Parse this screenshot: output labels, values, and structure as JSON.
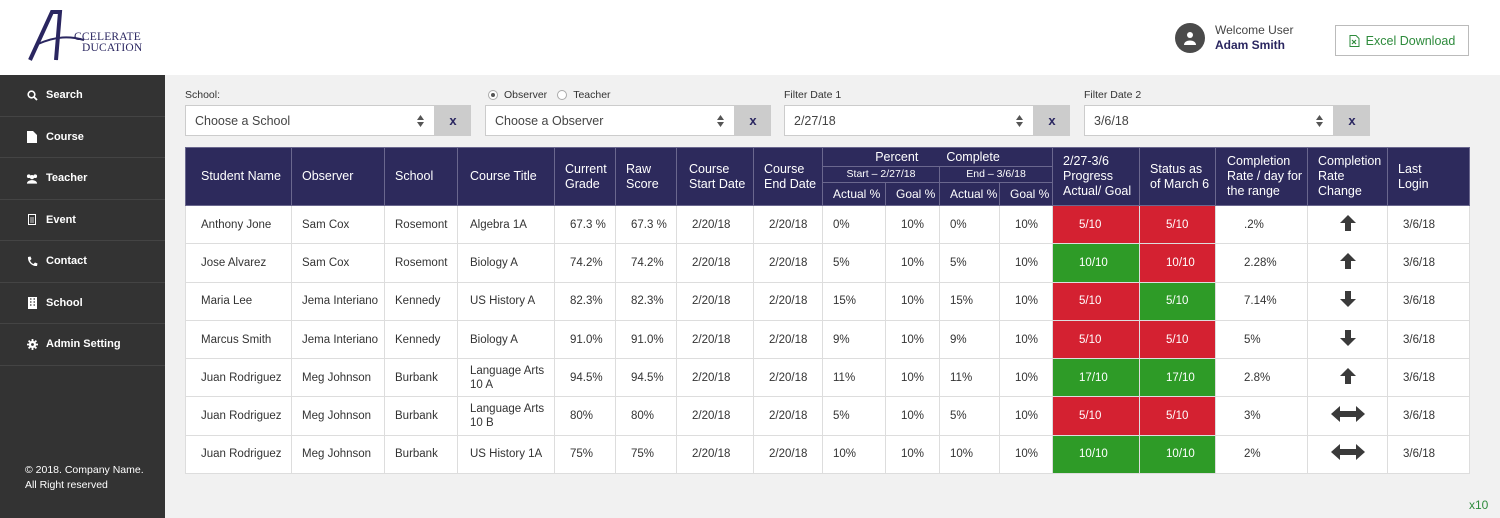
{
  "brand": {
    "line1": "CCELERATE",
    "line2": "DUCATION"
  },
  "header": {
    "welcome": "Welcome User",
    "user_name": "Adam Smith",
    "excel_label": "Excel Download"
  },
  "sidebar": {
    "items": [
      {
        "label": "Search",
        "icon": "search-icon"
      },
      {
        "label": "Course",
        "icon": "document-icon"
      },
      {
        "label": "Teacher",
        "icon": "users-icon"
      },
      {
        "label": "Event",
        "icon": "calendar-icon"
      },
      {
        "label": "Contact",
        "icon": "phone-icon"
      },
      {
        "label": "School",
        "icon": "building-icon"
      },
      {
        "label": "Admin Setting",
        "icon": "gear-icon"
      }
    ],
    "footer_line1": "© 2018. Company Name.",
    "footer_line2": "All Right reserved"
  },
  "filters": {
    "school_label": "School:",
    "school_value": "Choose a School",
    "radio_observer": "Observer",
    "radio_teacher": "Teacher",
    "radio_selected": "Observer",
    "observer_value": "Choose a Observer",
    "date1_label": "Filter Date 1",
    "date1_value": "2/27/18",
    "date2_label": "Filter Date 2",
    "date2_value": "3/6/18",
    "clear_label": "x"
  },
  "table": {
    "headers": {
      "student": "Student Name",
      "observer": "Observer",
      "school": "School",
      "course": "Course Title",
      "current_grade_1": "Current",
      "current_grade_2": "Grade",
      "raw_score_1": "Raw",
      "raw_score_2": "Score",
      "start_1": "Course",
      "start_2": "Start Date",
      "end_1": "Course",
      "end_2": "End Date",
      "percent": "Percent",
      "complete": "Complete",
      "start_range": "Start – 2/27/18",
      "end_range": "End – 3/6/18",
      "actual": "Actual %",
      "goal": "Goal %",
      "progress_1": "2/27-3/6",
      "progress_2": "Progress",
      "progress_3": "Actual/ Goal",
      "status_1": "Status as",
      "status_2": "of March 6",
      "rate_1": "Completion",
      "rate_2": "Rate / day for",
      "rate_3": "the range",
      "change_1": "Completion",
      "change_2": "Rate",
      "change_3": "Change",
      "login_1": "Last",
      "login_2": "Login"
    },
    "rows": [
      {
        "student": "Anthony Jone",
        "observer": "Sam Cox",
        "school": "Rosemont",
        "course": "Algebra 1A",
        "grade": "67.3 %",
        "raw": "67.3 %",
        "start": "2/20/18",
        "end": "2/20/18",
        "s_actual": "0%",
        "s_goal": "10%",
        "e_actual": "0%",
        "e_goal": "10%",
        "progress": "5/10",
        "progress_color": "#d42131",
        "status": "5/10",
        "status_color": "#d42131",
        "rate": ".2%",
        "change": "up",
        "login": "3/6/18"
      },
      {
        "student": "Jose Alvarez",
        "observer": "Sam Cox",
        "school": "Rosemont",
        "course": "Biology A",
        "grade": "74.2%",
        "raw": "74.2%",
        "start": "2/20/18",
        "end": "2/20/18",
        "s_actual": "5%",
        "s_goal": "10%",
        "e_actual": "5%",
        "e_goal": "10%",
        "progress": "10/10",
        "progress_color": "#2e9b27",
        "status": "10/10",
        "status_color": "#d42131",
        "rate": "2.28%",
        "change": "up",
        "login": "3/6/18"
      },
      {
        "student": "Maria Lee",
        "observer": "Jema Interiano",
        "school": "Kennedy",
        "course": "US History A",
        "grade": "82.3%",
        "raw": "82.3%",
        "start": "2/20/18",
        "end": "2/20/18",
        "s_actual": "15%",
        "s_goal": "10%",
        "e_actual": "15%",
        "e_goal": "10%",
        "progress": "5/10",
        "progress_color": "#d42131",
        "status": "5/10",
        "status_color": "#2e9b27",
        "rate": "7.14%",
        "change": "down",
        "login": "3/6/18"
      },
      {
        "student": "Marcus Smith",
        "observer": "Jema Interiano",
        "school": "Kennedy",
        "course": "Biology A",
        "grade": "91.0%",
        "raw": "91.0%",
        "start": "2/20/18",
        "end": "2/20/18",
        "s_actual": "9%",
        "s_goal": "10%",
        "e_actual": "9%",
        "e_goal": "10%",
        "progress": "5/10",
        "progress_color": "#d42131",
        "status": "5/10",
        "status_color": "#d42131",
        "rate": "5%",
        "change": "down",
        "login": "3/6/18"
      },
      {
        "student": "Juan Rodriguez",
        "observer": "Meg Johnson",
        "school": "Burbank",
        "course": "Language Arts 10 A",
        "grade": "94.5%",
        "raw": "94.5%",
        "start": "2/20/18",
        "end": "2/20/18",
        "s_actual": "11%",
        "s_goal": "10%",
        "e_actual": "11%",
        "e_goal": "10%",
        "progress": "17/10",
        "progress_color": "#2e9b27",
        "status": "17/10",
        "status_color": "#2e9b27",
        "rate": "2.8%",
        "change": "up",
        "login": "3/6/18"
      },
      {
        "student": "Juan Rodriguez",
        "observer": "Meg Johnson",
        "school": "Burbank",
        "course": "Language Arts 10 B",
        "grade": "80%",
        "raw": "80%",
        "start": "2/20/18",
        "end": "2/20/18",
        "s_actual": "5%",
        "s_goal": "10%",
        "e_actual": "5%",
        "e_goal": "10%",
        "progress": "5/10",
        "progress_color": "#d42131",
        "status": "5/10",
        "status_color": "#d42131",
        "rate": "3%",
        "change": "both",
        "login": "3/6/18"
      },
      {
        "student": "Juan Rodriguez",
        "observer": "Meg Johnson",
        "school": "Burbank",
        "course": "US History 1A",
        "grade": "75%",
        "raw": "75%",
        "start": "2/20/18",
        "end": "2/20/18",
        "s_actual": "10%",
        "s_goal": "10%",
        "e_actual": "10%",
        "e_goal": "10%",
        "progress": "10/10",
        "progress_color": "#2e9b27",
        "status": "10/10",
        "status_color": "#2e9b27",
        "rate": "2%",
        "change": "both",
        "login": "3/6/18"
      }
    ]
  },
  "pager_label": "x10",
  "colors": {
    "brand": "#2d2a5c",
    "red": "#d42131",
    "green": "#2e9b27",
    "sidebar": "#333333"
  }
}
